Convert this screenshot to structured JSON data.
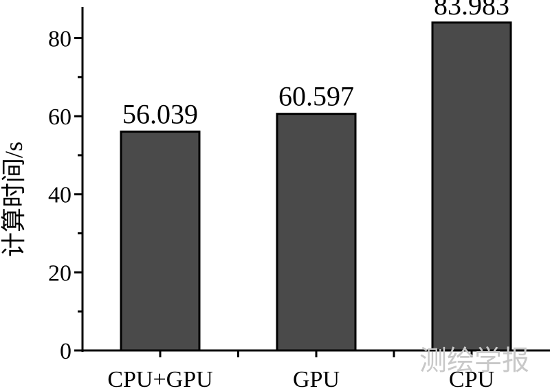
{
  "chart_data": {
    "type": "bar",
    "categories": [
      "CPU+GPU",
      "GPU",
      "CPU"
    ],
    "values": [
      56.039,
      60.597,
      83.983
    ],
    "data_labels": [
      "56.039",
      "60.597",
      "83.983"
    ],
    "title": "",
    "xlabel": "",
    "ylabel": "计算时间/s",
    "ylim": [
      0,
      88
    ],
    "yticks": [
      0,
      20,
      40,
      60,
      80
    ],
    "grid": false,
    "bar_color": "#4a4a4a"
  },
  "watermark": "测绘学报"
}
